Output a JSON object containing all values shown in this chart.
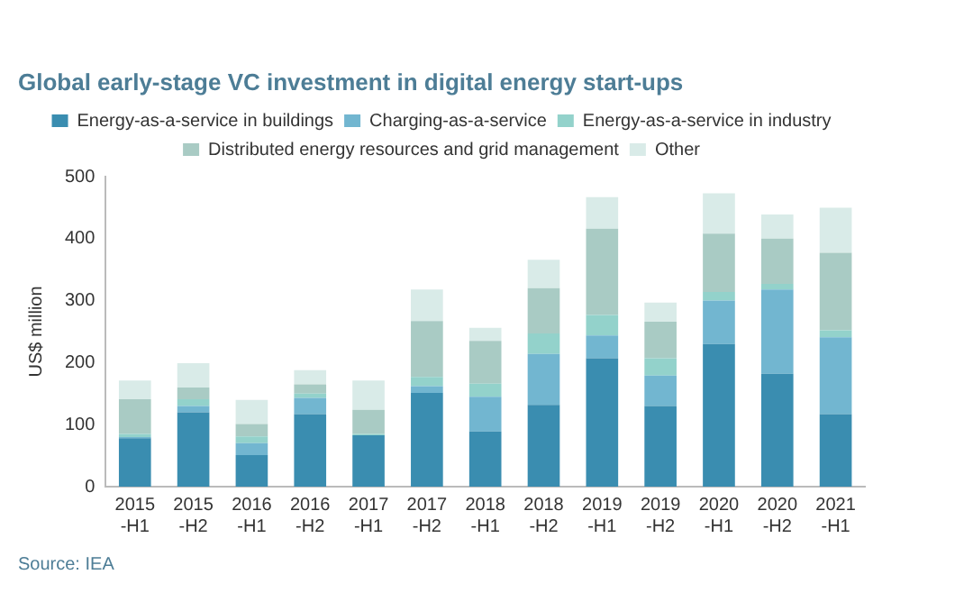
{
  "chart_data": {
    "type": "bar",
    "stacked": true,
    "title": "Global early-stage VC investment in digital energy start-ups",
    "ylabel": "US$ million",
    "annotations": [
      "Source: IEA"
    ],
    "categories": [
      "2015 -H1",
      "2015 -H2",
      "2016 -H1",
      "2016 -H2",
      "2017 -H1",
      "2017 -H2",
      "2018 -H1",
      "2018 -H2",
      "2019 -H1",
      "2019 -H2",
      "2020 -H1",
      "2020 -H2",
      "2021 -H1"
    ],
    "series": [
      {
        "name": "Energy-as-a-service in buildings",
        "color": "#3a8db0",
        "values": [
          78,
          120,
          51,
          117,
          83,
          151,
          89,
          132,
          207,
          130,
          230,
          182,
          117
        ]
      },
      {
        "name": "Charging-as-a-service",
        "color": "#72b6d0",
        "values": [
          2,
          10,
          19,
          26,
          0,
          11,
          56,
          82,
          37,
          49,
          70,
          136,
          124
        ]
      },
      {
        "name": "Energy-as-a-service in industry",
        "color": "#93d2cb",
        "values": [
          5,
          11,
          11,
          7,
          2,
          15,
          21,
          33,
          33,
          28,
          14,
          9,
          11
        ]
      },
      {
        "name": "Distributed energy resources and grid management",
        "color": "#a9cbc4",
        "values": [
          56,
          19,
          20,
          15,
          39,
          90,
          69,
          73,
          139,
          59,
          94,
          73,
          125
        ]
      },
      {
        "name": "Other",
        "color": "#d9ebe8",
        "values": [
          30,
          39,
          39,
          23,
          47,
          51,
          21,
          46,
          51,
          31,
          65,
          39,
          73
        ]
      }
    ],
    "ylim": [
      0,
      500
    ],
    "yticks": [
      0,
      100,
      200,
      300,
      400,
      500
    ],
    "grid": false,
    "legend": "top"
  }
}
